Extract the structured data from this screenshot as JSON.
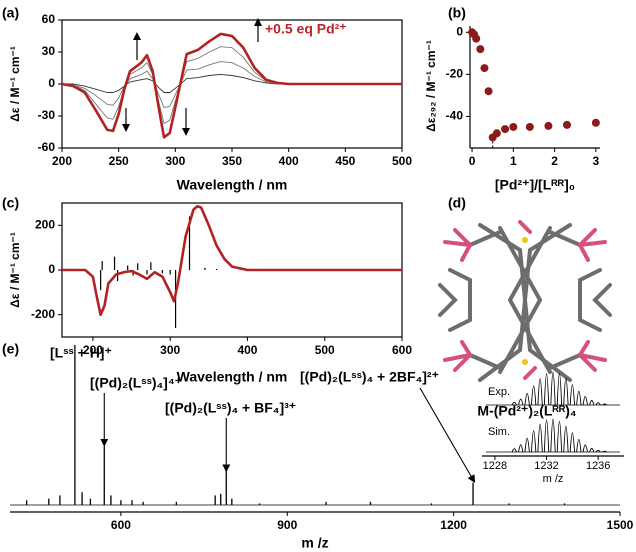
{
  "chart_data": [
    {
      "type": "line",
      "panel_label": "(a)",
      "xlabel": "Wavelength / nm",
      "ylabel": "Δε / M⁻¹ cm⁻¹",
      "annotation": "+0.5 eq Pd²⁺",
      "xlim": [
        200,
        500
      ],
      "xticks": [
        200,
        250,
        300,
        350,
        400,
        450,
        500
      ],
      "ylim": [
        -60,
        60
      ],
      "yticks": [
        -60,
        -30,
        0,
        30,
        60
      ],
      "x": [
        200,
        210,
        220,
        230,
        240,
        245,
        250,
        255,
        260,
        270,
        275,
        280,
        285,
        290,
        295,
        300,
        310,
        320,
        330,
        340,
        350,
        360,
        370,
        380,
        390,
        400,
        450,
        500
      ],
      "series": [
        {
          "color": "#333333",
          "values": [
            0,
            0,
            -2,
            -5,
            -8,
            -8,
            -6,
            -2,
            2,
            4,
            5,
            3,
            -3,
            -8,
            -8,
            -4,
            5,
            6,
            8,
            9,
            8,
            6,
            3,
            1,
            0,
            0,
            0,
            0
          ]
        },
        {
          "color": "#777777",
          "values": [
            0,
            -1,
            -4,
            -11,
            -19,
            -20,
            -13,
            -2,
            5,
            9,
            12,
            5,
            -9,
            -22,
            -21,
            -10,
            13,
            14,
            18,
            21,
            20,
            15,
            7,
            2,
            0,
            0,
            0,
            0
          ]
        },
        {
          "color": "#777777",
          "values": [
            0,
            -1,
            -6,
            -19,
            -32,
            -33,
            -21,
            -4,
            9,
            15,
            20,
            9,
            -15,
            -37,
            -34,
            -16,
            21,
            24,
            30,
            35,
            34,
            25,
            11,
            3,
            1,
            0,
            0,
            0
          ]
        },
        {
          "color": "#b22222",
          "values": [
            0,
            -2,
            -8,
            -25,
            -43,
            -44,
            -28,
            -5,
            12,
            20,
            27,
            12,
            -20,
            -50,
            -46,
            -22,
            28,
            32,
            40,
            47,
            45,
            34,
            15,
            4,
            1,
            0,
            0,
            0
          ]
        }
      ]
    },
    {
      "type": "scatter",
      "panel_label": "(b)",
      "xlabel": "[Pd²⁺]/[Lᴿᴿ]₀",
      "ylabel": "Δε₂₉₂ / M⁻¹ cm⁻¹",
      "xlim": [
        -0.05,
        3.1
      ],
      "xticks": [
        0,
        1,
        2,
        3
      ],
      "ylim": [
        -55,
        3
      ],
      "yticks": [
        0,
        -20,
        -40
      ],
      "color": "#8b1a1a",
      "x": [
        0,
        0.05,
        0.1,
        0.2,
        0.3,
        0.4,
        0.5,
        0.6,
        0.8,
        1.0,
        1.4,
        1.85,
        2.3,
        3.0
      ],
      "values": [
        0,
        -1,
        -3,
        -8,
        -17,
        -28,
        -50,
        -48,
        -46,
        -45,
        -45,
        -44.5,
        -44,
        -43
      ]
    },
    {
      "type": "line",
      "panel_label": "(c)",
      "xlabel": "Wavelength / nm",
      "ylabel": "Δε / M⁻¹ cm⁻¹",
      "xlim": [
        160,
        600
      ],
      "xticks": [
        200,
        300,
        400,
        500,
        600
      ],
      "ylim": [
        -300,
        300
      ],
      "yticks": [
        -200,
        0,
        200
      ],
      "series": [
        {
          "color": "#000000",
          "style": "stick",
          "x": [
            210,
            212,
            228,
            232,
            245,
            252,
            258,
            270,
            275,
            290,
            300,
            307,
            325,
            345,
            360
          ],
          "values": [
            -90,
            40,
            60,
            -50,
            20,
            -25,
            30,
            -20,
            35,
            -15,
            -20,
            -260,
            240,
            10,
            5
          ]
        },
        {
          "color": "#b22222",
          "x": [
            160,
            180,
            190,
            200,
            205,
            210,
            215,
            220,
            230,
            240,
            250,
            260,
            270,
            280,
            290,
            300,
            305,
            310,
            320,
            330,
            335,
            340,
            350,
            360,
            370,
            380,
            400,
            450,
            600
          ],
          "values": [
            0,
            0,
            0,
            -30,
            -120,
            -200,
            -160,
            -60,
            -20,
            -10,
            -5,
            -20,
            -40,
            -10,
            -30,
            -100,
            -140,
            -60,
            150,
            270,
            285,
            280,
            200,
            110,
            50,
            15,
            0,
            0,
            0
          ]
        }
      ]
    },
    {
      "type": "stick",
      "panel_label": "(e)",
      "xlabel": "m /z",
      "xlim": [
        400,
        1500
      ],
      "xticks": [
        600,
        900,
        1200,
        1500
      ],
      "color": "#000000",
      "annotations": [
        "[Lˢˢ + H]⁺",
        "[(Pd)₂(Lˢˢ)₄]⁴⁺",
        "[(Pd)₂(Lˢˢ)₄ + BF₄]³⁺",
        "[(Pd)₂(Lˢˢ)₄ + 2BF₄]²⁺"
      ],
      "x": [
        430,
        470,
        490,
        517,
        530,
        545,
        570,
        582,
        600,
        620,
        640,
        700,
        770,
        780,
        790,
        800,
        850,
        970,
        1050,
        1160,
        1235,
        1300,
        1400
      ],
      "values": [
        3,
        4,
        6,
        100,
        8,
        4,
        37,
        6,
        3,
        3,
        2,
        2,
        6,
        7,
        21,
        4,
        1,
        2,
        2,
        1,
        14,
        1,
        1
      ]
    },
    {
      "type": "stick",
      "xlabel": "m /z",
      "xlim": [
        1227,
        1238
      ],
      "xticks": [
        1228,
        1232,
        1236
      ],
      "x": [
        1229.5,
        1230,
        1230.5,
        1231,
        1231.5,
        1232,
        1232.5,
        1233,
        1233.5,
        1234,
        1234.5,
        1235,
        1235.5,
        1236,
        1236.5
      ],
      "series": [
        {
          "name": "Exp.",
          "color": "#000000",
          "values": [
            8,
            18,
            35,
            58,
            80,
            95,
            100,
            96,
            82,
            62,
            42,
            26,
            14,
            7,
            3
          ]
        },
        {
          "name": "Sim.",
          "color": "#000000",
          "values": [
            10,
            22,
            42,
            65,
            85,
            98,
            100,
            93,
            78,
            58,
            38,
            22,
            11,
            5,
            2
          ]
        }
      ]
    }
  ],
  "image_panel": {
    "panel_label": "(d)",
    "caption": "M-(Pd²⁺)₂(Lᴿᴿ)₄"
  }
}
